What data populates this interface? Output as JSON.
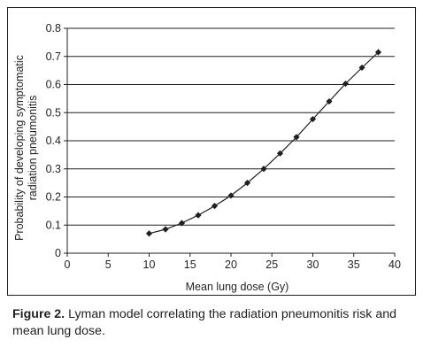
{
  "caption": {
    "label": "Figure 2.",
    "text": " Lyman model correlating the radiation pneumonitis risk and mean lung dose."
  },
  "colors": {
    "line": "#231f20",
    "grid": "#231f20",
    "text": "#231f20"
  },
  "chart_data": {
    "type": "line",
    "title": "",
    "xlabel": "Mean lung dose (Gy)",
    "ylabel_lines": [
      "Probability of developing symptomatic",
      "radiation pneumonitis"
    ],
    "xlim": [
      0,
      40
    ],
    "ylim": [
      0,
      0.8
    ],
    "x_ticks": [
      "0",
      "5",
      "10",
      "15",
      "20",
      "25",
      "30",
      "35",
      "40"
    ],
    "y_ticks": [
      "0",
      "0.1",
      "0.2",
      "0.3",
      "0.4",
      "0.5",
      "0.6",
      "0.7",
      "0.8"
    ],
    "grid": "horizontal",
    "marker": "diamond",
    "series": [
      {
        "x": [
          10,
          12,
          14,
          16,
          18,
          20,
          22,
          24,
          26,
          28,
          30,
          32,
          34,
          36,
          38
        ],
        "y": [
          0.07,
          0.085,
          0.107,
          0.135,
          0.168,
          0.205,
          0.25,
          0.3,
          0.355,
          0.413,
          0.477,
          0.54,
          0.603,
          0.66,
          0.715
        ]
      }
    ]
  }
}
